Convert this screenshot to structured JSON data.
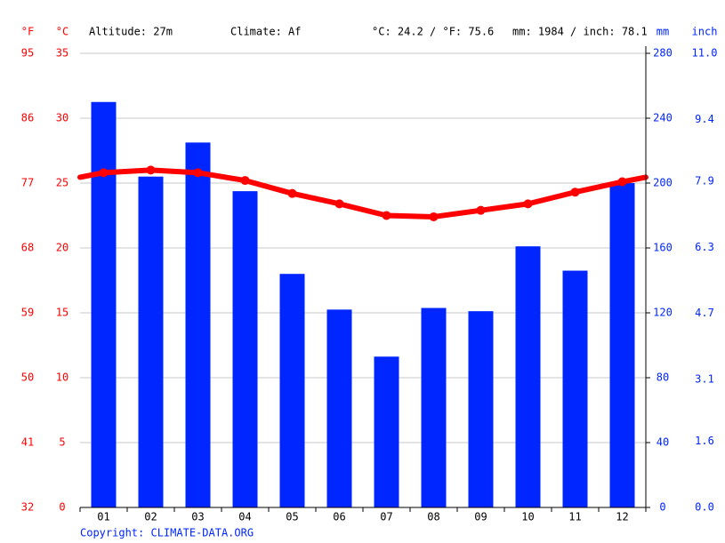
{
  "chart_data": {
    "type": "climate",
    "header": {
      "f_unit": "°F",
      "c_unit": "°C",
      "altitude": "Altitude: 27m",
      "climate": "Climate: Af",
      "temp_avg": "°C: 24.2 / °F: 75.6",
      "precip_total": "mm: 1984 / inch: 78.1",
      "mm_unit": "mm",
      "inch_unit": "inch"
    },
    "copyright": "Copyright: CLIMATE-DATA.ORG",
    "categories": [
      "01",
      "02",
      "03",
      "04",
      "05",
      "06",
      "07",
      "08",
      "09",
      "10",
      "11",
      "12"
    ],
    "series": [
      {
        "type": "bar",
        "axis": "y2",
        "color": "#0026ff",
        "values": [
          250,
          204,
          225,
          195,
          144,
          122,
          93,
          123,
          121,
          161,
          146,
          200
        ]
      },
      {
        "type": "line",
        "axis": "y",
        "color": "#ff0000",
        "values": [
          25.8,
          26.0,
          25.8,
          25.2,
          24.2,
          23.4,
          22.5,
          22.4,
          22.9,
          23.4,
          24.3,
          25.1
        ]
      }
    ],
    "ylim": [
      0,
      35
    ],
    "yticks": [
      0,
      5,
      10,
      15,
      20,
      25,
      30,
      35
    ],
    "flim": [
      32,
      95
    ],
    "fticks": [
      32,
      41,
      50,
      59,
      68,
      77,
      86,
      95
    ],
    "y2lim": [
      0,
      280
    ],
    "y2ticks": [
      0,
      40,
      80,
      120,
      160,
      200,
      240,
      280
    ],
    "inchlim": [
      0,
      11
    ],
    "inchticks": [
      {
        "value": 0,
        "label": "0.0"
      },
      1.6,
      3.1,
      4.7,
      6.3,
      7.9,
      9.4,
      {
        "value": 11,
        "label": "11.0"
      }
    ],
    "grid": true
  }
}
